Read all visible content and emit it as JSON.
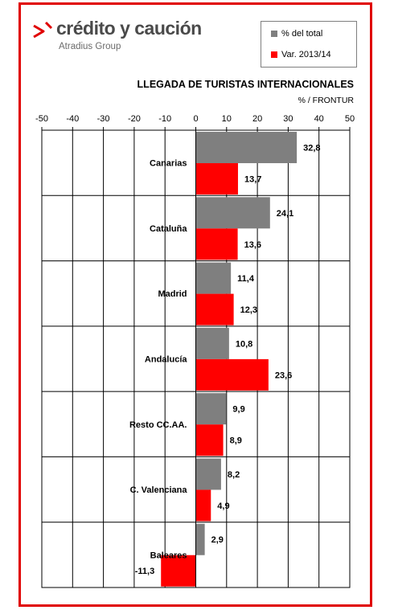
{
  "brand": {
    "name": "crédito y caución",
    "subtitle": "Atradius Group",
    "arrow_color": "#e00000"
  },
  "legend": {
    "items": [
      {
        "label": "% del total",
        "color": "#7f7f7f"
      },
      {
        "label": "Var. 2013/14",
        "color": "#ff0000"
      }
    ]
  },
  "chart_data": {
    "type": "bar",
    "orientation": "horizontal",
    "title": "LLEGADA DE TURISTAS INTERNACIONALES",
    "subtitle": "% / FRONTUR",
    "categories": [
      "Canarias",
      "Cataluña",
      "Madrid",
      "Andalucía",
      "Resto CC.AA.",
      "C. Valenciana",
      "Baleares"
    ],
    "series": [
      {
        "name": "% del total",
        "color": "#7f7f7f",
        "values": [
          32.8,
          24.1,
          11.4,
          10.8,
          9.9,
          8.2,
          2.9
        ],
        "labels": [
          "32,8",
          "24,1",
          "11,4",
          "10,8",
          "9,9",
          "8,2",
          "2,9"
        ]
      },
      {
        "name": "Var. 2013/14",
        "color": "#ff0000",
        "values": [
          13.7,
          13.6,
          12.3,
          23.6,
          8.9,
          4.9,
          -11.3
        ],
        "labels": [
          "13,7",
          "13,6",
          "12,3",
          "23,6",
          "8,9",
          "4,9",
          "-11,3"
        ]
      }
    ],
    "xlim": [
      -50,
      50
    ],
    "xticks": [
      -50,
      -40,
      -30,
      -20,
      -10,
      0,
      10,
      20,
      30,
      40,
      50
    ],
    "xtick_labels": [
      "-50",
      "-40",
      "-30",
      "-20",
      "-10",
      "0",
      "10",
      "20",
      "30",
      "40",
      "50"
    ],
    "axis_position": "top",
    "grid": true,
    "legend_position": "top-right"
  }
}
